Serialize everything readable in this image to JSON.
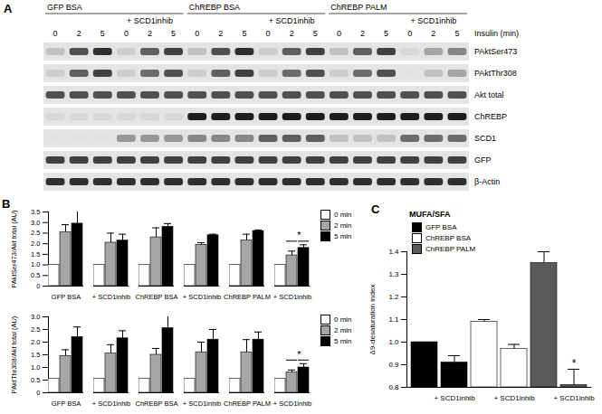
{
  "blot": {
    "panel": "A",
    "groups": [
      "GFP BSA",
      "+ SCD1inhib",
      "ChREBP BSA",
      "+ SCD1inhib",
      "ChREBP PALM",
      "+ SCD1inhib"
    ],
    "lanes": [
      0,
      2,
      5,
      0,
      2,
      5,
      0,
      2,
      5,
      0,
      2,
      5,
      0,
      2,
      5,
      0,
      2,
      5
    ],
    "lane_label": "Insulin (min)",
    "rows": [
      {
        "label": "PAktSer473",
        "intensity": [
          0.35,
          0.75,
          0.85,
          0.3,
          0.7,
          0.8,
          0.35,
          0.75,
          0.85,
          0.3,
          0.7,
          0.8,
          0.35,
          0.7,
          0.8,
          0.25,
          0.45,
          0.55
        ]
      },
      {
        "label": "PAktThr308",
        "intensity": [
          0.3,
          0.7,
          0.8,
          0.3,
          0.65,
          0.75,
          0.3,
          0.7,
          0.8,
          0.3,
          0.65,
          0.75,
          0.3,
          0.65,
          0.75,
          0.2,
          0.35,
          0.45
        ]
      },
      {
        "label": "Akt total",
        "intensity": [
          0.75,
          0.75,
          0.75,
          0.75,
          0.75,
          0.75,
          0.75,
          0.75,
          0.75,
          0.75,
          0.75,
          0.75,
          0.75,
          0.75,
          0.75,
          0.75,
          0.75,
          0.75
        ]
      },
      {
        "label": "ChREBP",
        "intensity": [
          0.25,
          0.25,
          0.25,
          0.25,
          0.25,
          0.25,
          0.9,
          0.9,
          0.9,
          0.9,
          0.9,
          0.9,
          0.9,
          0.9,
          0.9,
          0.9,
          0.9,
          0.9
        ]
      },
      {
        "label": "SCD1",
        "intensity": [
          0.2,
          0.2,
          0.2,
          0.5,
          0.5,
          0.5,
          0.55,
          0.55,
          0.55,
          0.7,
          0.7,
          0.7,
          0.35,
          0.35,
          0.35,
          0.65,
          0.65,
          0.65
        ]
      },
      {
        "label": "GFP",
        "intensity": [
          0.8,
          0.8,
          0.8,
          0.8,
          0.8,
          0.8,
          0.8,
          0.8,
          0.8,
          0.8,
          0.8,
          0.8,
          0.8,
          0.8,
          0.8,
          0.8,
          0.8,
          0.8
        ]
      },
      {
        "label": "β-Actin",
        "intensity": [
          0.85,
          0.85,
          0.85,
          0.85,
          0.85,
          0.85,
          0.85,
          0.85,
          0.85,
          0.85,
          0.85,
          0.85,
          0.85,
          0.85,
          0.85,
          0.85,
          0.85,
          0.85
        ]
      }
    ]
  },
  "chart_data": [
    {
      "panel": "B",
      "type": "bar",
      "categories": [
        "GFP BSA",
        "+ SCD1inhib",
        "ChREBP BSA",
        "+ SCD1inhib",
        "ChREBP PALM",
        "+ SCD1inhib"
      ],
      "ylabel": "PAktSer473/Akt total (AU)",
      "ylim": [
        0,
        3.5
      ],
      "yticks": [
        0,
        0.5,
        {
          "value": 1,
          "label": "1.0"
        },
        1.5,
        {
          "value": 2,
          "label": "2.0"
        },
        2.5,
        {
          "value": 3,
          "label": "3.0"
        },
        3.5
      ],
      "legend": "right",
      "series": [
        {
          "name": "0 min",
          "color": "#ffffff",
          "values": [
            1,
            1,
            1,
            1,
            1,
            1
          ],
          "errors": [
            0,
            0,
            0,
            0,
            0,
            0
          ]
        },
        {
          "name": "2 min",
          "color": "#a6a6a6",
          "values": [
            2.55,
            2.05,
            2.3,
            1.95,
            2.15,
            1.45
          ],
          "errors": [
            0.35,
            0.45,
            0.45,
            0.1,
            0.3,
            0.2
          ]
        },
        {
          "name": "5 min",
          "color": "#000000",
          "values": [
            2.95,
            2.15,
            2.8,
            2.4,
            2.6,
            1.8
          ],
          "errors": [
            0.6,
            0.3,
            0.15,
            0.05,
            0.05,
            0.15
          ]
        }
      ],
      "annotations": [
        {
          "text": "*",
          "category": 5
        }
      ]
    },
    {
      "type": "bar",
      "categories": [
        "GFP BSA",
        "+ SCD1inhib",
        "ChREBP BSA",
        "+ SCD1inhib",
        "ChREBP PALM",
        "+ SCD1inhib"
      ],
      "ylabel": "PAktThr308/Akt total (AU)",
      "ylim": [
        0,
        3
      ],
      "yticks": [
        0,
        0.5,
        {
          "value": 1,
          "label": "1.0"
        },
        1.5,
        {
          "value": 2,
          "label": "2.0"
        },
        2.5,
        {
          "value": 3,
          "label": "3.0"
        }
      ],
      "legend": "right",
      "series": [
        {
          "name": "0 min",
          "color": "#ffffff",
          "values": [
            0.55,
            0.55,
            0.55,
            0.55,
            0.55,
            0.55
          ],
          "errors": [
            0,
            0,
            0,
            0,
            0,
            0
          ]
        },
        {
          "name": "2 min",
          "color": "#a6a6a6",
          "values": [
            1.45,
            1.55,
            1.5,
            1.6,
            1.6,
            0.8
          ],
          "errors": [
            0.25,
            0.35,
            0.25,
            0.4,
            0.5,
            0.1
          ]
        },
        {
          "name": "5 min",
          "color": "#000000",
          "values": [
            2.2,
            2.15,
            2.55,
            2.1,
            2.1,
            1.0
          ],
          "errors": [
            0.4,
            0.3,
            0.8,
            0.4,
            0.3,
            0.15
          ]
        }
      ],
      "annotations": [
        {
          "text": "*",
          "category": 5
        }
      ]
    },
    {
      "panel": "C",
      "type": "bar",
      "title": "MUFA/SFA",
      "categories": [
        null,
        "+ SCD1inhib",
        null,
        "+ SCD1inhib",
        null,
        "+ SCD1inhib"
      ],
      "ylabel": "Δ9-desaturation index",
      "ylim": [
        0.8,
        1.4
      ],
      "yticks": [
        0.8,
        0.9,
        {
          "value": 1,
          "label": "1.0"
        },
        1.1,
        1.2,
        1.3,
        1.4
      ],
      "legend": "top-left",
      "series": [
        {
          "name": "GFP BSA",
          "color": "#000000",
          "values": [
            1.0,
            0.91,
            null,
            null,
            null,
            null
          ],
          "errors": [
            0,
            0.03,
            null,
            null,
            null,
            null
          ]
        },
        {
          "name": "ChREBP BSA",
          "color": "#ffffff",
          "values": [
            null,
            null,
            1.09,
            0.97,
            null,
            null
          ],
          "errors": [
            null,
            null,
            0.01,
            0.02,
            null,
            null
          ]
        },
        {
          "name": "ChREBP PALM",
          "color": "#595959",
          "values": [
            null,
            null,
            null,
            null,
            1.35,
            0.81
          ],
          "errors": [
            null,
            null,
            null,
            null,
            0.05,
            0.07
          ]
        }
      ],
      "annotations": [
        {
          "text": "*",
          "category": 5
        }
      ]
    }
  ]
}
